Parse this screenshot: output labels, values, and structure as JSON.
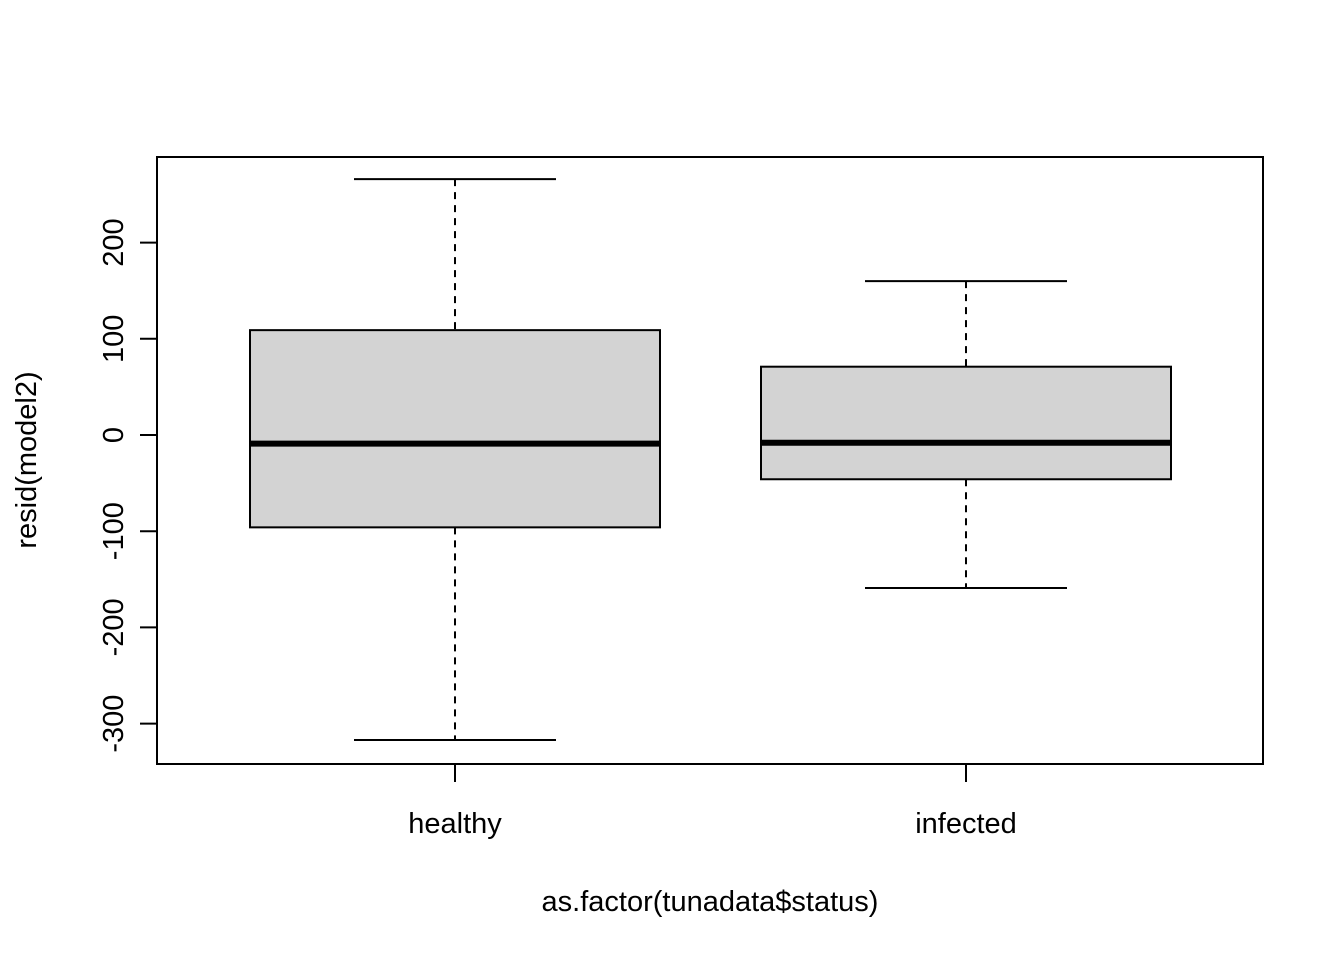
{
  "chart_data": {
    "type": "boxplot",
    "title": "",
    "xlabel": "as.factor(tunadata$status)",
    "ylabel": "resid(model2)",
    "ylim": [
      -340,
      290
    ],
    "yticks": [
      -300,
      -200,
      -100,
      0,
      100,
      200
    ],
    "grid": false,
    "legend": "none",
    "box_fill": "#d3d3d3",
    "categories": [
      "healthy",
      "infected"
    ],
    "boxes": [
      {
        "category": "healthy",
        "whisker_low": -317,
        "q1": -96,
        "median": -9,
        "q3": 109,
        "whisker_high": 266
      },
      {
        "category": "infected",
        "whisker_low": -159,
        "q1": -46,
        "median": -8,
        "q3": 71,
        "whisker_high": 160
      }
    ]
  }
}
